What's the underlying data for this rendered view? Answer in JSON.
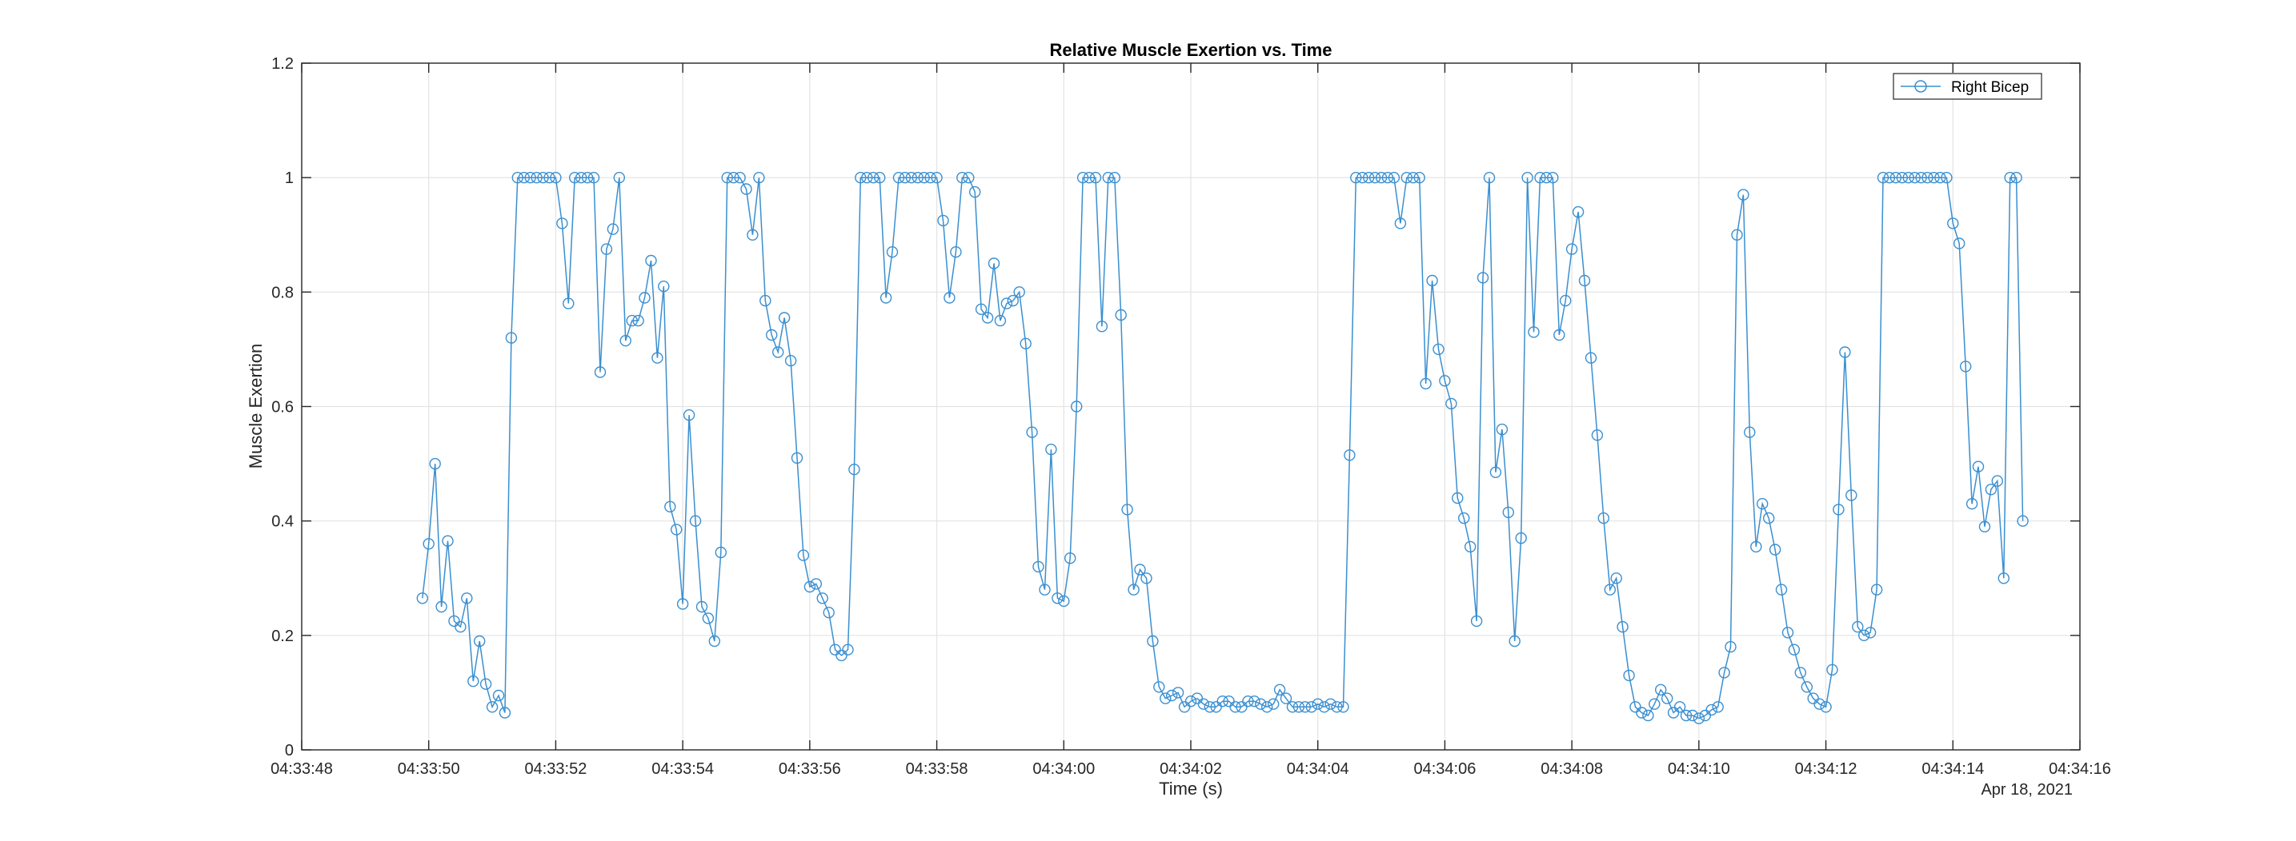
{
  "chart_data": {
    "type": "line",
    "title": "Relative Muscle Exertion vs. Time",
    "xlabel": "Time (s)",
    "ylabel": "Muscle Exertion",
    "date_label": "Apr 18, 2021",
    "xlim": [
      "04:33:48",
      "04:34:16"
    ],
    "ylim": [
      0,
      1.2
    ],
    "x_ticks": [
      "04:33:48",
      "04:33:50",
      "04:33:52",
      "04:33:54",
      "04:33:56",
      "04:33:58",
      "04:34:00",
      "04:34:02",
      "04:34:04",
      "04:34:06",
      "04:34:08",
      "04:34:10",
      "04:34:12",
      "04:34:14",
      "04:34:16"
    ],
    "y_ticks": [
      "0",
      "0.2",
      "0.4",
      "0.6",
      "0.8",
      "1",
      "1.2"
    ],
    "grid": true,
    "legend_position": "top-right",
    "series_color": "#3a8fd0",
    "series": [
      {
        "name": "Right Bicep",
        "marker": "circle",
        "x_start": "04:33:49.90",
        "x_step_seconds": 0.1,
        "values": [
          0.265,
          0.36,
          0.5,
          0.25,
          0.365,
          0.225,
          0.215,
          0.265,
          0.12,
          0.19,
          0.115,
          0.075,
          0.095,
          0.065,
          0.72,
          1.0,
          1.0,
          1.0,
          1.0,
          1.0,
          1.0,
          1.0,
          0.92,
          0.78,
          1.0,
          1.0,
          1.0,
          1.0,
          0.66,
          0.875,
          0.91,
          1.0,
          0.715,
          0.75,
          0.75,
          0.79,
          0.855,
          0.685,
          0.81,
          0.425,
          0.385,
          0.255,
          0.585,
          0.4,
          0.25,
          0.23,
          0.19,
          0.345,
          1.0,
          1.0,
          1.0,
          0.98,
          0.9,
          1.0,
          0.785,
          0.725,
          0.695,
          0.755,
          0.68,
          0.51,
          0.34,
          0.285,
          0.29,
          0.265,
          0.24,
          0.175,
          0.165,
          0.175,
          0.49,
          1.0,
          1.0,
          1.0,
          1.0,
          0.79,
          0.87,
          1.0,
          1.0,
          1.0,
          1.0,
          1.0,
          1.0,
          1.0,
          0.925,
          0.79,
          0.87,
          1.0,
          1.0,
          0.975,
          0.77,
          0.755,
          0.85,
          0.75,
          0.78,
          0.785,
          0.8,
          0.71,
          0.555,
          0.32,
          0.28,
          0.525,
          0.265,
          0.26,
          0.335,
          0.6,
          1.0,
          1.0,
          1.0,
          0.74,
          1.0,
          1.0,
          0.76,
          0.42,
          0.28,
          0.315,
          0.3,
          0.19,
          0.11,
          0.09,
          0.095,
          0.1,
          0.075,
          0.085,
          0.09,
          0.08,
          0.075,
          0.075,
          0.085,
          0.085,
          0.075,
          0.075,
          0.085,
          0.085,
          0.08,
          0.075,
          0.08,
          0.105,
          0.09,
          0.075,
          0.075,
          0.075,
          0.075,
          0.08,
          0.075,
          0.08,
          0.075,
          0.075,
          0.515,
          1.0,
          1.0,
          1.0,
          1.0,
          1.0,
          1.0,
          1.0,
          0.92,
          1.0,
          1.0,
          1.0,
          0.64,
          0.82,
          0.7,
          0.645,
          0.605,
          0.44,
          0.405,
          0.355,
          0.225,
          0.825,
          1.0,
          0.485,
          0.56,
          0.415,
          0.19,
          0.37,
          1.0,
          0.73,
          1.0,
          1.0,
          1.0,
          0.725,
          0.785,
          0.875,
          0.94,
          0.82,
          0.685,
          0.55,
          0.405,
          0.28,
          0.3,
          0.215,
          0.13,
          0.075,
          0.065,
          0.06,
          0.08,
          0.105,
          0.09,
          0.065,
          0.075,
          0.06,
          0.06,
          0.055,
          0.06,
          0.07,
          0.075,
          0.135,
          0.18,
          0.9,
          0.97,
          0.555,
          0.355,
          0.43,
          0.405,
          0.35,
          0.28,
          0.205,
          0.175,
          0.135,
          0.11,
          0.09,
          0.08,
          0.075,
          0.14,
          0.42,
          0.695,
          0.445,
          0.215,
          0.2,
          0.205,
          0.28,
          1.0,
          1.0,
          1.0,
          1.0,
          1.0,
          1.0,
          1.0,
          1.0,
          1.0,
          1.0,
          1.0,
          0.92,
          0.885,
          0.67,
          0.43,
          0.495,
          0.39,
          0.455,
          0.47,
          0.3,
          1.0,
          1.0,
          0.4
        ]
      }
    ]
  }
}
